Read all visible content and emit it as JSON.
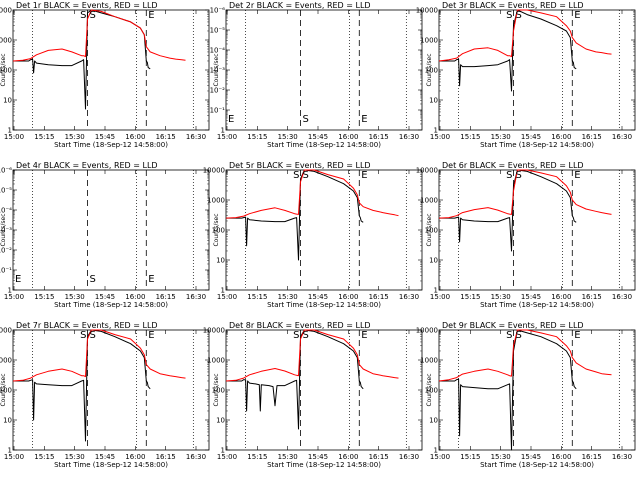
{
  "figure": {
    "xlabel": "Start Time (18-Sep-12 14:58:00)",
    "ylabel": "Counts/sec",
    "x_ticks": [
      "15:00",
      "15:15",
      "15:30",
      "15:45",
      "16:00",
      "16:15",
      "16:30"
    ],
    "colors": {
      "events": "#000000",
      "lld": "#ff0000",
      "axis": "#000000"
    }
  },
  "chart_data": [
    {
      "type": "line",
      "title": "Det 1r BLACK = Events, RED = LLD",
      "yscale": "log",
      "ylim": [
        1,
        10000
      ],
      "y_ticks": [
        "1",
        "10",
        "100",
        "1000",
        "10000"
      ],
      "xlim": [
        0,
        100
      ],
      "markers": {
        "S": "S",
        "E": "E"
      },
      "series": [
        {
          "name": "Events",
          "x": [
            0,
            8,
            9,
            10,
            10.5,
            11,
            12,
            18,
            25,
            30,
            35,
            36,
            37,
            38,
            40,
            45,
            52,
            60,
            65,
            67,
            68,
            68.5,
            69,
            70,
            75,
            80,
            83,
            86,
            88
          ],
          "y": [
            200,
            200,
            220,
            230,
            80,
            200,
            170,
            150,
            140,
            140,
            200,
            220,
            5,
            8000,
            10000,
            8000,
            6000,
            4000,
            2500,
            1500,
            200,
            180,
            120,
            110,
            null,
            null,
            null,
            null,
            null
          ]
        },
        {
          "name": "LLD",
          "x": [
            0,
            5,
            9,
            12,
            18,
            25,
            30,
            35,
            36,
            37,
            38,
            40,
            45,
            52,
            60,
            65,
            67,
            68,
            70,
            75,
            80,
            83,
            86,
            88
          ],
          "y": [
            200,
            210,
            240,
            320,
            450,
            500,
            400,
            300,
            300,
            280,
            5000,
            10000,
            9000,
            6000,
            4000,
            2500,
            1500,
            600,
            400,
            300,
            250,
            230,
            220,
            210
          ]
        }
      ]
    },
    {
      "type": "line",
      "title": "Det 2r BLACK = Events, RED = LLD",
      "yscale": "log",
      "ylim": [
        1,
        1e-06
      ],
      "y_ticks": [
        "1",
        "10⁻¹",
        "10⁻²",
        "10⁻³",
        "10⁻⁴",
        "10⁻⁵",
        "10⁻⁶"
      ],
      "xlim": [
        0,
        100
      ],
      "markers": {
        "S": "S",
        "E": "E"
      },
      "series": []
    },
    {
      "type": "line",
      "title": "Det 3r BLACK = Events, RED = LLD",
      "yscale": "log",
      "ylim": [
        1,
        10000
      ],
      "y_ticks": [
        "1",
        "10",
        "100",
        "1000",
        "10000"
      ],
      "xlim": [
        0,
        100
      ],
      "markers": {
        "S": "S",
        "E": "E"
      },
      "series": [
        {
          "name": "Events",
          "x": [
            0,
            8,
            9,
            10,
            10.5,
            11,
            12,
            18,
            25,
            30,
            35,
            36,
            37,
            38,
            40,
            45,
            52,
            60,
            65,
            67,
            68,
            68.5,
            69,
            70
          ],
          "y": [
            200,
            200,
            220,
            230,
            30,
            150,
            130,
            130,
            140,
            150,
            200,
            220,
            20,
            3000,
            10000,
            7000,
            5000,
            3000,
            2000,
            1200,
            200,
            180,
            120,
            110
          ]
        },
        {
          "name": "LLD",
          "x": [
            0,
            5,
            9,
            12,
            18,
            25,
            30,
            35,
            36,
            37,
            38,
            40,
            45,
            52,
            60,
            65,
            67,
            68,
            70,
            75,
            80,
            83,
            86,
            88
          ],
          "y": [
            200,
            220,
            250,
            350,
            500,
            550,
            450,
            300,
            300,
            280,
            2000,
            10000,
            10000,
            8000,
            6000,
            3000,
            2000,
            1200,
            800,
            500,
            400,
            380,
            350,
            340
          ]
        }
      ]
    },
    {
      "type": "line",
      "title": "Det 4r BLACK = Events, RED = LLD",
      "yscale": "log",
      "ylim": [
        1,
        1e-06
      ],
      "y_ticks": [
        "1",
        "10⁻¹",
        "10⁻²",
        "10⁻³",
        "10⁻⁴",
        "10⁻⁵",
        "10⁻⁶"
      ],
      "xlim": [
        0,
        100
      ],
      "markers": {
        "S": "S",
        "E": "E"
      },
      "series": []
    },
    {
      "type": "line",
      "title": "Det 5r BLACK = Events, RED = LLD",
      "yscale": "log",
      "ylim": [
        1,
        10000
      ],
      "y_ticks": [
        "1",
        "10",
        "100",
        "1000",
        "10000"
      ],
      "xlim": [
        0,
        100
      ],
      "markers": {
        "S": "S",
        "E": "E"
      },
      "series": [
        {
          "name": "Events",
          "x": [
            0,
            8,
            9,
            10,
            10.5,
            11,
            12,
            18,
            25,
            30,
            35,
            36,
            37,
            38,
            40,
            45,
            52,
            60,
            65,
            67,
            68,
            68.5,
            69,
            70
          ],
          "y": [
            250,
            250,
            260,
            270,
            30,
            250,
            220,
            200,
            190,
            190,
            250,
            260,
            10,
            5000,
            10000,
            9000,
            6000,
            3500,
            2000,
            1200,
            300,
            260,
            200,
            180
          ]
        },
        {
          "name": "LLD",
          "x": [
            0,
            5,
            9,
            12,
            18,
            25,
            30,
            35,
            36,
            37,
            38,
            40,
            45,
            52,
            60,
            65,
            67,
            68,
            70,
            75,
            80,
            83,
            86,
            88
          ],
          "y": [
            250,
            260,
            290,
            350,
            450,
            550,
            450,
            350,
            340,
            330,
            4000,
            10000,
            10000,
            7000,
            5000,
            2500,
            1500,
            800,
            600,
            450,
            380,
            350,
            320,
            300
          ]
        }
      ]
    },
    {
      "type": "line",
      "title": "Det 6r BLACK = Events, RED = LLD",
      "yscale": "log",
      "ylim": [
        1,
        10000
      ],
      "y_ticks": [
        "1",
        "10",
        "100",
        "1000",
        "10000"
      ],
      "xlim": [
        0,
        100
      ],
      "markers": {
        "S": "S",
        "E": "E"
      },
      "series": [
        {
          "name": "Events",
          "x": [
            0,
            8,
            9,
            10,
            10.5,
            11,
            12,
            18,
            25,
            30,
            35,
            36,
            37,
            38,
            40,
            45,
            52,
            60,
            65,
            67,
            68,
            68.5,
            69,
            70
          ],
          "y": [
            250,
            250,
            260,
            270,
            40,
            250,
            220,
            200,
            190,
            190,
            250,
            260,
            20,
            3000,
            10000,
            9000,
            6000,
            3500,
            2000,
            1200,
            300,
            260,
            200,
            180
          ]
        },
        {
          "name": "LLD",
          "x": [
            0,
            5,
            9,
            12,
            18,
            25,
            30,
            35,
            36,
            37,
            38,
            40,
            45,
            52,
            60,
            65,
            67,
            68,
            70,
            75,
            80,
            83,
            86,
            88
          ],
          "y": [
            250,
            260,
            300,
            380,
            480,
            560,
            460,
            350,
            340,
            330,
            2000,
            10000,
            10000,
            8000,
            6000,
            3000,
            1800,
            1000,
            700,
            500,
            420,
            380,
            350,
            330
          ]
        }
      ]
    },
    {
      "type": "line",
      "title": "Det 7r BLACK = Events, RED = LLD",
      "yscale": "log",
      "ylim": [
        1,
        10000
      ],
      "y_ticks": [
        "1",
        "10",
        "100",
        "1000",
        "10000"
      ],
      "xlim": [
        0,
        100
      ],
      "markers": {
        "S": "S",
        "E": "E"
      },
      "series": [
        {
          "name": "Events",
          "x": [
            0,
            8,
            9,
            10,
            10.5,
            11,
            12,
            18,
            25,
            30,
            35,
            36,
            37,
            38,
            40,
            45,
            52,
            60,
            65,
            67,
            68,
            68.5,
            69,
            70
          ],
          "y": [
            200,
            200,
            210,
            220,
            10,
            180,
            160,
            150,
            140,
            140,
            200,
            210,
            2,
            6000,
            10000,
            9000,
            6000,
            3500,
            2000,
            1200,
            200,
            180,
            130,
            110
          ]
        },
        {
          "name": "LLD",
          "x": [
            0,
            5,
            9,
            12,
            18,
            25,
            30,
            35,
            36,
            37,
            38,
            40,
            45,
            52,
            60,
            65,
            67,
            68,
            70,
            75,
            80,
            83,
            86,
            88
          ],
          "y": [
            200,
            210,
            250,
            320,
            420,
            500,
            420,
            300,
            300,
            280,
            5000,
            10000,
            10000,
            7000,
            5000,
            2500,
            1500,
            700,
            500,
            350,
            300,
            280,
            260,
            250
          ]
        }
      ]
    },
    {
      "type": "line",
      "title": "Det 8r BLACK = Events, RED = LLD",
      "yscale": "log",
      "ylim": [
        1,
        10000
      ],
      "y_ticks": [
        "1",
        "10",
        "100",
        "1000",
        "10000"
      ],
      "xlim": [
        0,
        100
      ],
      "markers": {
        "S": "S",
        "E": "E"
      },
      "series": [
        {
          "name": "Events",
          "x": [
            0,
            8,
            9,
            10,
            10.5,
            11,
            12,
            15,
            17,
            17.5,
            18,
            22,
            24,
            25,
            26,
            30,
            35,
            36,
            37,
            38,
            40,
            45,
            52,
            60,
            65,
            67,
            68,
            68.5,
            69,
            70
          ],
          "y": [
            200,
            200,
            220,
            220,
            20,
            200,
            170,
            160,
            150,
            20,
            150,
            140,
            130,
            30,
            140,
            140,
            200,
            210,
            5,
            6000,
            10000,
            9000,
            6000,
            3500,
            2000,
            1200,
            200,
            180,
            130,
            110
          ]
        },
        {
          "name": "LLD",
          "x": [
            0,
            5,
            9,
            12,
            18,
            25,
            30,
            35,
            36,
            37,
            38,
            40,
            45,
            52,
            60,
            65,
            67,
            68,
            70,
            75,
            80,
            83,
            86,
            88
          ],
          "y": [
            200,
            210,
            250,
            320,
            420,
            520,
            430,
            320,
            310,
            300,
            5000,
            10000,
            10000,
            7000,
            5000,
            2500,
            1500,
            700,
            500,
            350,
            300,
            280,
            260,
            250
          ]
        }
      ]
    },
    {
      "type": "line",
      "title": "Det 9r BLACK = Events, RED = LLD",
      "yscale": "log",
      "ylim": [
        1,
        10000
      ],
      "y_ticks": [
        "1",
        "10",
        "100",
        "1000",
        "10000"
      ],
      "xlim": [
        0,
        100
      ],
      "markers": {
        "S": "S",
        "E": "E"
      },
      "series": [
        {
          "name": "Events",
          "x": [
            0,
            8,
            9,
            10,
            10.5,
            11,
            12,
            18,
            25,
            30,
            35,
            36,
            37,
            38,
            40,
            45,
            52,
            60,
            65,
            67,
            68,
            68.5,
            69,
            70
          ],
          "y": [
            200,
            200,
            220,
            230,
            3,
            150,
            130,
            120,
            110,
            110,
            150,
            160,
            1,
            2000,
            10000,
            8000,
            6000,
            3500,
            2000,
            1200,
            200,
            180,
            130,
            110
          ]
        },
        {
          "name": "LLD",
          "x": [
            0,
            5,
            9,
            12,
            18,
            25,
            30,
            35,
            36,
            37,
            38,
            40,
            45,
            52,
            60,
            65,
            67,
            68,
            70,
            75,
            80,
            83,
            86,
            88
          ],
          "y": [
            200,
            220,
            260,
            340,
            420,
            500,
            420,
            320,
            300,
            290,
            3000,
            10000,
            10000,
            8000,
            6000,
            3000,
            2000,
            1200,
            800,
            500,
            400,
            350,
            330,
            320
          ]
        }
      ]
    }
  ]
}
